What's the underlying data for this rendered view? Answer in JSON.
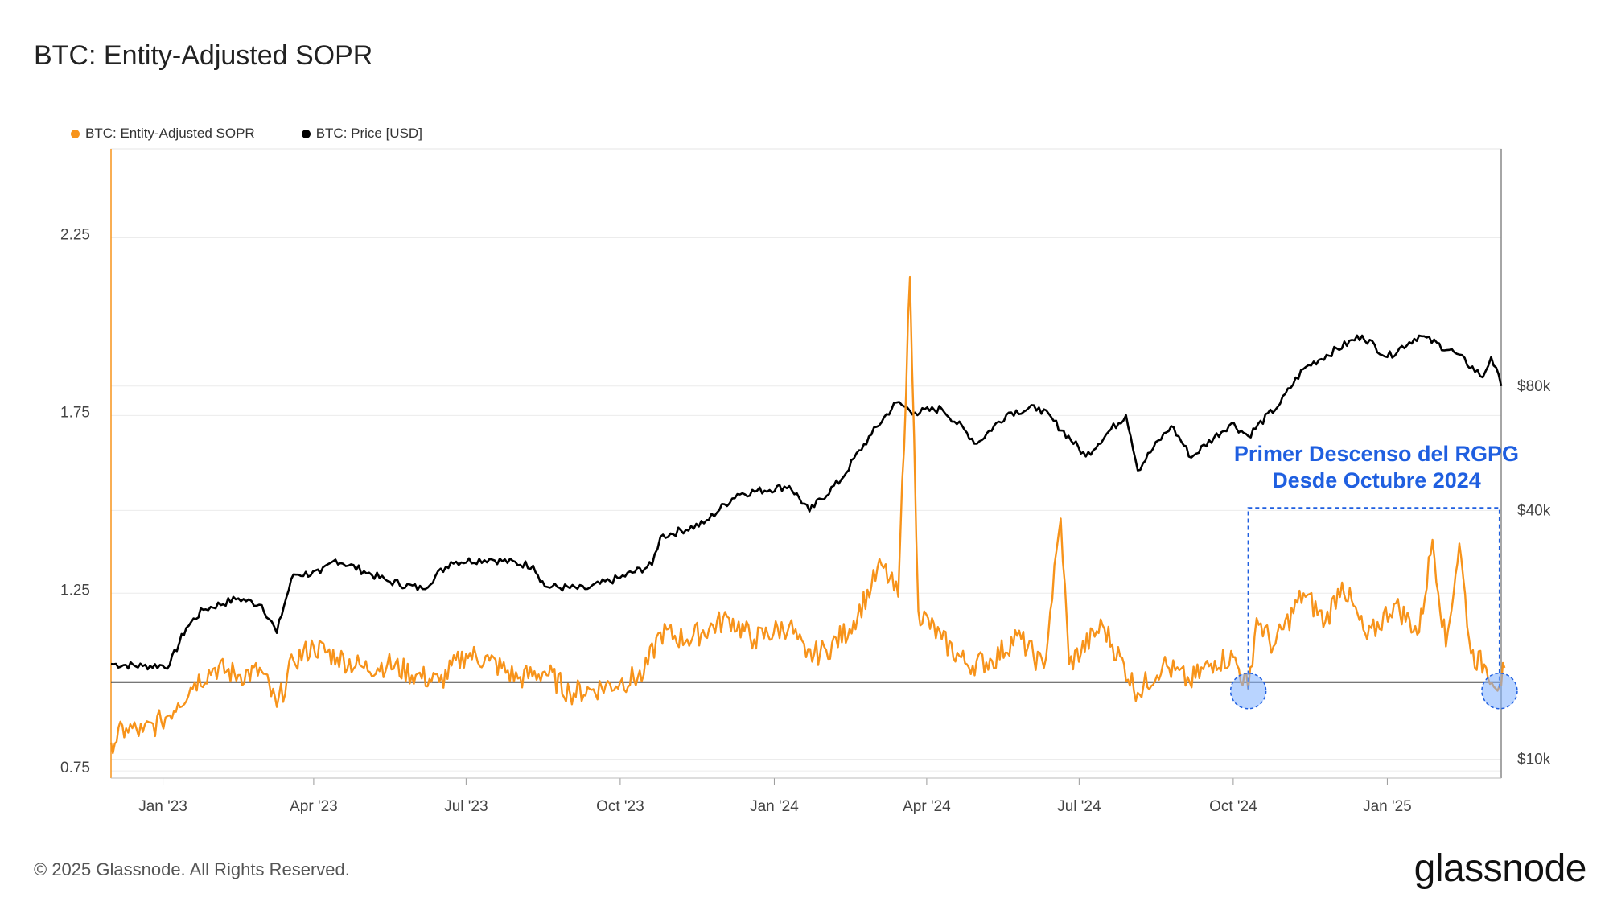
{
  "title": "BTC: Entity-Adjusted SOPR",
  "legend": [
    {
      "label": "BTC: Entity-Adjusted SOPR",
      "color": "#f7931a"
    },
    {
      "label": "BTC: Price [USD]",
      "color": "#000000"
    }
  ],
  "annotation": {
    "line1": "Primer Descenso del RGPG",
    "line2": "Desde Octubre 2024",
    "color": "#1f5fe0"
  },
  "footer": {
    "copyright": "© 2025 Glassnode. All Rights Reserved.",
    "brand": "glassnode"
  },
  "colors": {
    "sopr": "#f7931a",
    "price": "#000000",
    "baseline": "#4a4a4a",
    "highlight_fill": "#7fb0ff",
    "highlight_stroke": "#1f5fe0",
    "grid": "#ececec"
  },
  "chart_data": {
    "type": "line",
    "title": "BTC: Entity-Adjusted SOPR",
    "x_ticks": [
      "Jan '23",
      "Apr '23",
      "Jul '23",
      "Oct '23",
      "Jan '24",
      "Apr '24",
      "Jul '24",
      "Oct '24",
      "Jan '25"
    ],
    "x_range": [
      "2022-12-01",
      "2025-03-10"
    ],
    "y_left": {
      "ticks": [
        "0.75",
        "1.25",
        "1.75",
        "2.25"
      ],
      "range": [
        0.73,
        2.5
      ]
    },
    "y_right": {
      "ticks": [
        "$10k",
        "$40k",
        "$80k"
      ],
      "tick_values": [
        10000,
        40000,
        80000
      ],
      "scale": "log",
      "range": [
        9000,
        300000
      ]
    },
    "baseline": 1.0,
    "highlights": [
      {
        "date": "2024-10-10",
        "value": 0.975
      },
      {
        "date": "2025-03-09",
        "value": 0.975
      }
    ],
    "annotation_box": {
      "start": "2024-10-10",
      "end": "2025-03-09",
      "top_value": 1.49,
      "bottom_value": 0.98
    },
    "series": [
      {
        "name": "BTC: Entity-Adjusted SOPR",
        "axis": "left",
        "color": "#f7931a",
        "points": [
          [
            "2022-12-01",
            0.83
          ],
          [
            "2022-12-10",
            0.87
          ],
          [
            "2022-12-20",
            0.86
          ],
          [
            "2022-12-31",
            0.89
          ],
          [
            "2023-01-10",
            0.94
          ],
          [
            "2023-01-20",
            1.0
          ],
          [
            "2023-02-01",
            1.04
          ],
          [
            "2023-02-15",
            1.02
          ],
          [
            "2023-03-01",
            1.03
          ],
          [
            "2023-03-10",
            0.93
          ],
          [
            "2023-03-20",
            1.06
          ],
          [
            "2023-04-01",
            1.1
          ],
          [
            "2023-04-15",
            1.07
          ],
          [
            "2023-05-01",
            1.04
          ],
          [
            "2023-05-15",
            1.05
          ],
          [
            "2023-06-01",
            1.02
          ],
          [
            "2023-06-15",
            1.0
          ],
          [
            "2023-07-01",
            1.08
          ],
          [
            "2023-07-15",
            1.06
          ],
          [
            "2023-08-01",
            1.01
          ],
          [
            "2023-08-17",
            1.03
          ],
          [
            "2023-09-01",
            0.97
          ],
          [
            "2023-09-15",
            0.98
          ],
          [
            "2023-10-01",
            1.0
          ],
          [
            "2023-10-15",
            1.02
          ],
          [
            "2023-10-25",
            1.14
          ],
          [
            "2023-11-10",
            1.12
          ],
          [
            "2023-12-05",
            1.18
          ],
          [
            "2023-12-20",
            1.12
          ],
          [
            "2024-01-10",
            1.16
          ],
          [
            "2024-01-20",
            1.07
          ],
          [
            "2024-02-01",
            1.09
          ],
          [
            "2024-02-15",
            1.15
          ],
          [
            "2024-02-28",
            1.27
          ],
          [
            "2024-03-05",
            1.33
          ],
          [
            "2024-03-15",
            1.24
          ],
          [
            "2024-03-22",
            2.14
          ],
          [
            "2024-03-27",
            1.2
          ],
          [
            "2024-04-10",
            1.12
          ],
          [
            "2024-04-25",
            1.05
          ],
          [
            "2024-05-10",
            1.06
          ],
          [
            "2024-05-25",
            1.13
          ],
          [
            "2024-06-10",
            1.04
          ],
          [
            "2024-06-20",
            1.46
          ],
          [
            "2024-06-25",
            1.05
          ],
          [
            "2024-07-15",
            1.16
          ],
          [
            "2024-08-05",
            0.97
          ],
          [
            "2024-08-20",
            1.05
          ],
          [
            "2024-09-05",
            1.0
          ],
          [
            "2024-09-20",
            1.06
          ],
          [
            "2024-10-01",
            1.07
          ],
          [
            "2024-10-10",
            0.98
          ],
          [
            "2024-10-15",
            1.18
          ],
          [
            "2024-10-25",
            1.1
          ],
          [
            "2024-11-12",
            1.25
          ],
          [
            "2024-11-25",
            1.17
          ],
          [
            "2024-12-05",
            1.28
          ],
          [
            "2024-12-20",
            1.12
          ],
          [
            "2025-01-05",
            1.22
          ],
          [
            "2025-01-20",
            1.14
          ],
          [
            "2025-01-28",
            1.4
          ],
          [
            "2025-02-05",
            1.1
          ],
          [
            "2025-02-13",
            1.39
          ],
          [
            "2025-02-20",
            1.08
          ],
          [
            "2025-03-01",
            1.04
          ],
          [
            "2025-03-09",
            0.99
          ],
          [
            "2025-03-12",
            1.04
          ]
        ]
      },
      {
        "name": "BTC: Price [USD]",
        "axis": "right",
        "color": "#000000",
        "points": [
          [
            "2022-12-01",
            17000
          ],
          [
            "2022-12-20",
            16800
          ],
          [
            "2023-01-05",
            16900
          ],
          [
            "2023-01-15",
            20800
          ],
          [
            "2023-01-25",
            23000
          ],
          [
            "2023-02-15",
            24500
          ],
          [
            "2023-03-01",
            23600
          ],
          [
            "2023-03-10",
            20200
          ],
          [
            "2023-03-20",
            28000
          ],
          [
            "2023-04-05",
            28200
          ],
          [
            "2023-04-14",
            30400
          ],
          [
            "2023-05-01",
            28500
          ],
          [
            "2023-05-15",
            27000
          ],
          [
            "2023-06-05",
            25800
          ],
          [
            "2023-06-22",
            30000
          ],
          [
            "2023-07-15",
            30500
          ],
          [
            "2023-08-10",
            29400
          ],
          [
            "2023-08-17",
            26200
          ],
          [
            "2023-09-10",
            25800
          ],
          [
            "2023-10-01",
            27500
          ],
          [
            "2023-10-20",
            29500
          ],
          [
            "2023-10-25",
            34500
          ],
          [
            "2023-11-20",
            37200
          ],
          [
            "2023-12-10",
            43800
          ],
          [
            "2024-01-10",
            45800
          ],
          [
            "2024-01-22",
            39800
          ],
          [
            "2024-02-10",
            47500
          ],
          [
            "2024-02-28",
            61000
          ],
          [
            "2024-03-14",
            73000
          ],
          [
            "2024-03-25",
            69000
          ],
          [
            "2024-04-10",
            70500
          ],
          [
            "2024-05-01",
            58000
          ],
          [
            "2024-05-20",
            69000
          ],
          [
            "2024-06-07",
            71000
          ],
          [
            "2024-07-05",
            54000
          ],
          [
            "2024-07-29",
            68000
          ],
          [
            "2024-08-05",
            50000
          ],
          [
            "2024-08-25",
            64000
          ],
          [
            "2024-09-06",
            53700
          ],
          [
            "2024-09-30",
            65000
          ],
          [
            "2024-10-10",
            60500
          ],
          [
            "2024-10-29",
            72500
          ],
          [
            "2024-11-12",
            88000
          ],
          [
            "2024-12-17",
            106000
          ],
          [
            "2025-01-01",
            94000
          ],
          [
            "2025-01-20",
            106000
          ],
          [
            "2025-02-10",
            96500
          ],
          [
            "2025-02-27",
            84000
          ],
          [
            "2025-03-04",
            94000
          ],
          [
            "2025-03-10",
            80000
          ]
        ]
      }
    ]
  }
}
